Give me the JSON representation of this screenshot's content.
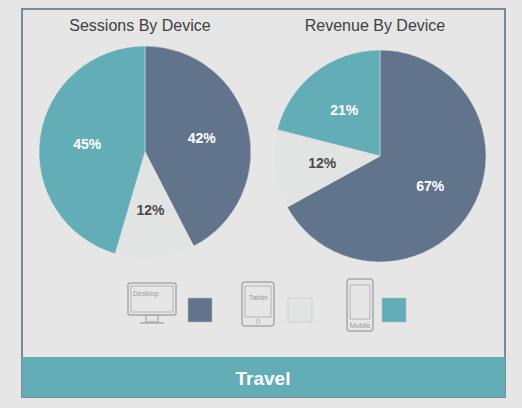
{
  "footer": "Travel",
  "chart_data": [
    {
      "type": "pie",
      "title": "Sessions By Device",
      "categories": [
        "Desktop",
        "Tablet",
        "Mobile"
      ],
      "values": [
        42,
        12,
        45
      ],
      "value_labels": [
        "42%",
        "12%",
        "45%"
      ],
      "colors": [
        "#62748c",
        "#e2e4e4",
        "#63adb6"
      ],
      "data_labels": true,
      "legend": "bottom"
    },
    {
      "type": "pie",
      "title": "Revenue By Device",
      "categories": [
        "Desktop",
        "Tablet",
        "Mobile"
      ],
      "values": [
        67,
        12,
        21
      ],
      "value_labels": [
        "67%",
        "12%",
        "21%"
      ],
      "colors": [
        "#62748c",
        "#e2e4e4",
        "#63adb6"
      ],
      "data_labels": true
    }
  ]
}
